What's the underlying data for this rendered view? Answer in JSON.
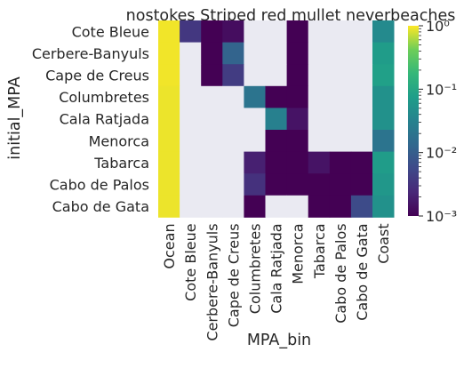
{
  "chart_data": {
    "type": "heatmap",
    "title": "nostokes Striped red mullet neverbeaches",
    "xlabel": "MPA_bin",
    "ylabel": "initial_MPA",
    "x_categories": [
      "Ocean",
      "Cote Bleue",
      "Cerbere-Banyuls",
      "Cape de Creus",
      "Columbretes",
      "Cala Ratjada",
      "Menorca",
      "Tabarca",
      "Cabo de Palos",
      "Cabo de Gata",
      "Coast"
    ],
    "y_categories": [
      "Cote Bleue",
      "Cerbere-Banyuls",
      "Cape de Creus",
      "Columbretes",
      "Cala Ratjada",
      "Menorca",
      "Tabarca",
      "Cabo de Palos",
      "Cabo de Gata"
    ],
    "missing_color": "#eaeaf2",
    "colormap": "viridis",
    "color_scale": "log",
    "colorbar_range": [
      0.001,
      1
    ],
    "colorbar_ticks": [
      {
        "value": 1,
        "label": "10⁰"
      },
      {
        "value": 0.1,
        "label": "10⁻¹"
      },
      {
        "value": 0.01,
        "label": "10⁻²"
      },
      {
        "value": 0.001,
        "label": "10⁻³"
      }
    ],
    "values": [
      [
        0.93,
        0.0035,
        0.001,
        0.0013,
        null,
        null,
        0.001,
        null,
        null,
        null,
        0.04
      ],
      [
        0.93,
        null,
        0.001,
        0.012,
        null,
        null,
        0.001,
        null,
        null,
        null,
        0.07
      ],
      [
        0.93,
        null,
        0.001,
        0.004,
        null,
        null,
        0.001,
        null,
        null,
        null,
        0.08
      ],
      [
        0.9,
        null,
        null,
        null,
        0.02,
        0.001,
        0.001,
        null,
        null,
        null,
        0.05
      ],
      [
        0.9,
        null,
        null,
        null,
        null,
        0.03,
        0.0015,
        null,
        null,
        null,
        0.05
      ],
      [
        0.9,
        null,
        null,
        null,
        null,
        0.001,
        0.001,
        null,
        null,
        null,
        0.02
      ],
      [
        0.9,
        null,
        null,
        null,
        0.002,
        0.001,
        0.001,
        0.0015,
        0.001,
        0.001,
        0.07
      ],
      [
        0.9,
        null,
        null,
        null,
        0.003,
        0.001,
        0.001,
        0.001,
        0.001,
        0.001,
        0.06
      ],
      [
        0.9,
        null,
        null,
        null,
        0.001,
        null,
        null,
        0.001,
        0.001,
        0.006,
        0.05
      ]
    ]
  }
}
